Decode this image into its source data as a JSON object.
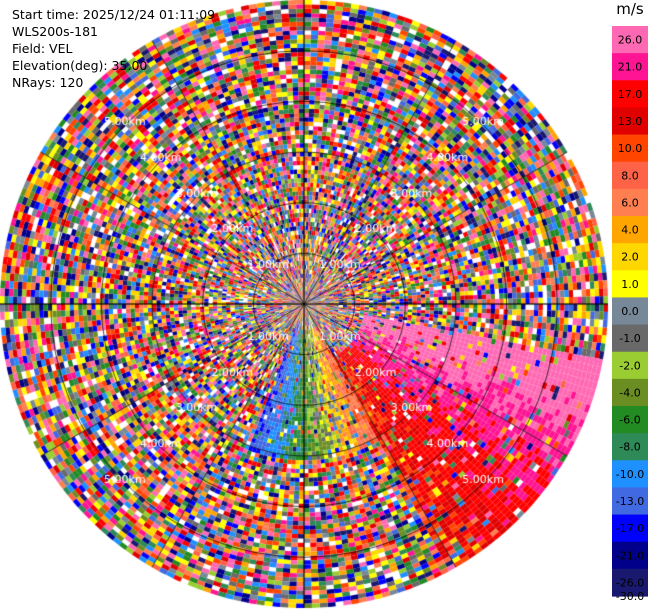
{
  "header": {
    "start_time": "Start time: 2025/12/24 01:11:09",
    "instrument": "WLS200s-181",
    "field": "Field: VEL",
    "elevation": "Elevation(deg): 35.00",
    "nrays": "NRays: 120"
  },
  "colorbar": {
    "unit": "m/s",
    "ticks": [
      "26.0",
      "21.0",
      "17.0",
      "13.0",
      "10.0",
      "8.0",
      "6.0",
      "4.0",
      "2.0",
      "1.0",
      "0.0",
      "-1.0",
      "-2.0",
      "-4.0",
      "-6.0",
      "-8.0",
      "-10.0",
      "-13.0",
      "-17.0",
      "-21.0",
      "-26.0",
      "-30.0"
    ],
    "colors": [
      "#ff69b4",
      "#ff1493",
      "#ff0000",
      "#e00000",
      "#ff4500",
      "#ff6347",
      "#ff7f50",
      "#ffa500",
      "#ffd700",
      "#ffff00",
      "#778899",
      "#696969",
      "#9acd32",
      "#6b8e23",
      "#228b22",
      "#2e8b57",
      "#1e90ff",
      "#4169e1",
      "#0000ff",
      "#00008b",
      "#191970"
    ]
  },
  "chart_data": {
    "type": "heatmap",
    "description_units": "radial velocity (m/s)",
    "n_rays": 120,
    "range_rings_km": [
      1.0,
      2.0,
      3.0,
      4.0,
      5.0
    ],
    "ring_labels": [
      "1.00km",
      "2.00km",
      "3.00km",
      "4.00km",
      "5.00km"
    ],
    "max_range_km": 6.0,
    "coherent_regions": [
      {
        "azimuth_deg_from_north_cw": [
          100,
          150
        ],
        "range_km": [
          1.2,
          6.0
        ],
        "velocity_ms": [
          10,
          26
        ]
      },
      {
        "azimuth_deg_from_north_cw": [
          150,
          200
        ],
        "range_km": [
          0.5,
          3.0
        ],
        "velocity_ms": [
          -17,
          8
        ]
      }
    ]
  }
}
